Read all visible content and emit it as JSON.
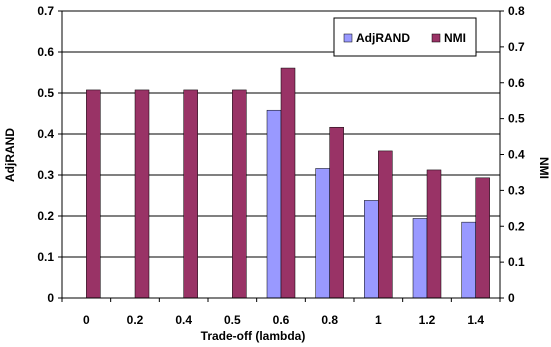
{
  "chart_data": {
    "type": "bar",
    "xlabel": "Trade-off (lambda)",
    "ylabel_left": "AdjRAND",
    "ylabel_right": "NMI",
    "categories": [
      "0",
      "0.2",
      "0.4",
      "0.5",
      "0.6",
      "0.8",
      "1",
      "1.2",
      "1.4"
    ],
    "series": [
      {
        "name": "AdjRAND",
        "axis": "left",
        "color": "#9999ff",
        "values": [
          0,
          0,
          0,
          0,
          0.458,
          0.316,
          0.238,
          0.194,
          0.185
        ]
      },
      {
        "name": "NMI",
        "axis": "right",
        "color": "#993366",
        "values": [
          0.58,
          0.58,
          0.58,
          0.58,
          0.641,
          0.476,
          0.41,
          0.357,
          0.335
        ]
      }
    ],
    "ylim_left": [
      0,
      0.7
    ],
    "yticks_left": [
      "0",
      "0.1",
      "0.2",
      "0.3",
      "0.4",
      "0.5",
      "0.6",
      "0.7"
    ],
    "ylim_right": [
      0,
      0.8
    ],
    "yticks_right": [
      "0",
      "0.1",
      "0.2",
      "0.3",
      "0.4",
      "0.5",
      "0.6",
      "0.7",
      "0.8"
    ],
    "grid": true,
    "legend_position": "top-right"
  }
}
